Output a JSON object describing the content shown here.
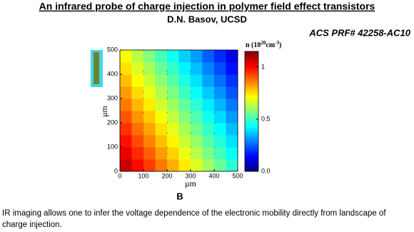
{
  "header": {
    "title": "An infrared probe of charge injection in polymer field effect transistors",
    "author": "D.N. Basov, UCSD",
    "grant": "ACS PRF# 42258-AC10"
  },
  "chart_data": {
    "type": "heatmap",
    "xlabel": "μm",
    "ylabel": "μm",
    "panel_label": "B",
    "xbins": [
      0,
      50,
      100,
      150,
      200,
      250,
      300,
      350,
      400,
      450,
      500
    ],
    "ybins": [
      0,
      50,
      100,
      150,
      200,
      250,
      300,
      350,
      400,
      450,
      500
    ],
    "z": [
      [
        1.07,
        1.0,
        0.94,
        0.87,
        0.81,
        0.74,
        0.68,
        0.61,
        0.55,
        0.48
      ],
      [
        1.03,
        0.96,
        0.9,
        0.83,
        0.77,
        0.7,
        0.64,
        0.57,
        0.51,
        0.44
      ],
      [
        0.99,
        0.92,
        0.86,
        0.79,
        0.73,
        0.66,
        0.6,
        0.53,
        0.47,
        0.4
      ],
      [
        0.95,
        0.88,
        0.82,
        0.75,
        0.69,
        0.62,
        0.56,
        0.49,
        0.43,
        0.36
      ],
      [
        0.91,
        0.84,
        0.78,
        0.71,
        0.65,
        0.58,
        0.52,
        0.45,
        0.39,
        0.32
      ],
      [
        0.87,
        0.8,
        0.74,
        0.67,
        0.61,
        0.54,
        0.48,
        0.41,
        0.35,
        0.28
      ],
      [
        0.83,
        0.76,
        0.7,
        0.63,
        0.57,
        0.5,
        0.44,
        0.37,
        0.31,
        0.24
      ],
      [
        0.79,
        0.72,
        0.66,
        0.59,
        0.53,
        0.46,
        0.4,
        0.33,
        0.27,
        0.2
      ],
      [
        0.75,
        0.68,
        0.62,
        0.55,
        0.49,
        0.42,
        0.36,
        0.29,
        0.23,
        0.16
      ],
      [
        0.71,
        0.64,
        0.58,
        0.51,
        0.45,
        0.38,
        0.32,
        0.25,
        0.19,
        0.12
      ]
    ],
    "xlim": [
      0,
      500
    ],
    "ylim": [
      0,
      500
    ],
    "xticks": [
      0,
      100,
      200,
      300,
      400,
      500
    ],
    "yticks": [
      0,
      100,
      200,
      300,
      400,
      500
    ],
    "grid": true,
    "colormap": "jet",
    "colorbar": {
      "label": {
        "base": "n (10",
        "exp1": "20",
        "mid": "cm",
        "exp2": "-3",
        "end": ")"
      },
      "clim": [
        0,
        1.15
      ],
      "ticks": [
        {
          "value": 0,
          "label": "0.0"
        },
        0.5,
        1
      ]
    }
  },
  "caption": "IR imaging allows one to infer the voltage dependence of the electronic mobility directly from landscape of charge injection."
}
